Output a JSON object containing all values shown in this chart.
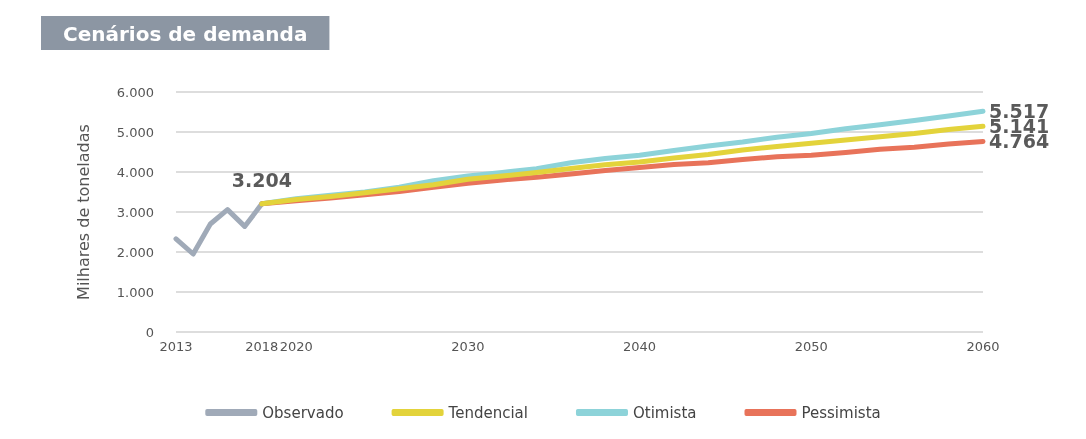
{
  "chart_data": {
    "type": "line",
    "title": "Cenários de demanda",
    "ylabel": "Milhares de toneladas",
    "xlim": [
      2013,
      2060
    ],
    "xticks": [
      2013,
      2018,
      2020,
      2030,
      2040,
      2050,
      2060
    ],
    "ylim": [
      0,
      6000
    ],
    "yticks": [
      {
        "value": 0,
        "label": "0"
      },
      {
        "value": 1000,
        "label": "1.000"
      },
      {
        "value": 2000,
        "label": "2.000"
      },
      {
        "value": 3000,
        "label": "3.000"
      },
      {
        "value": 4000,
        "label": "4.000"
      },
      {
        "value": 5000,
        "label": "5.000"
      },
      {
        "value": 6000,
        "label": "6.000"
      }
    ],
    "grid": "y",
    "legend": "bottom",
    "marker": "none",
    "line_style": "solid",
    "series": [
      {
        "name": "Observado",
        "color": "#a0aab8",
        "x": [
          2013,
          2014,
          2015,
          2016,
          2017,
          2018
        ],
        "values": [
          2330,
          1950,
          2700,
          3060,
          2640,
          3204
        ],
        "value_labels": [
          null,
          null,
          null,
          null,
          null,
          "3.204"
        ]
      },
      {
        "name": "Tendencial",
        "color": "#e3d33b",
        "x": [
          2018,
          2020,
          2022,
          2024,
          2026,
          2028,
          2030,
          2032,
          2034,
          2036,
          2038,
          2040,
          2042,
          2044,
          2046,
          2048,
          2050,
          2052,
          2054,
          2056,
          2058,
          2060
        ],
        "values": [
          3204,
          3310,
          3390,
          3480,
          3580,
          3680,
          3820,
          3900,
          3990,
          4090,
          4180,
          4250,
          4350,
          4440,
          4550,
          4640,
          4720,
          4800,
          4880,
          4960,
          5060,
          5141
        ],
        "value_labels": [
          null,
          null,
          null,
          null,
          null,
          null,
          null,
          null,
          null,
          null,
          null,
          null,
          null,
          null,
          null,
          null,
          null,
          null,
          null,
          null,
          null,
          "5.141"
        ]
      },
      {
        "name": "Otimista",
        "color": "#8dd3d9",
        "x": [
          2018,
          2020,
          2022,
          2024,
          2026,
          2028,
          2030,
          2032,
          2034,
          2036,
          2038,
          2040,
          2042,
          2044,
          2046,
          2048,
          2050,
          2052,
          2054,
          2056,
          2058,
          2060
        ],
        "values": [
          3204,
          3330,
          3420,
          3500,
          3620,
          3780,
          3900,
          3990,
          4080,
          4230,
          4340,
          4420,
          4540,
          4650,
          4750,
          4870,
          4960,
          5080,
          5180,
          5290,
          5400,
          5517
        ],
        "value_labels": [
          null,
          null,
          null,
          null,
          null,
          null,
          null,
          null,
          null,
          null,
          null,
          null,
          null,
          null,
          null,
          null,
          null,
          null,
          null,
          null,
          null,
          "5.517"
        ]
      },
      {
        "name": "Pessimista",
        "color": "#e8735a",
        "x": [
          2018,
          2020,
          2022,
          2024,
          2026,
          2028,
          2030,
          2032,
          2034,
          2036,
          2038,
          2040,
          2042,
          2044,
          2046,
          2048,
          2050,
          2052,
          2054,
          2056,
          2058,
          2060
        ],
        "values": [
          3204,
          3280,
          3350,
          3430,
          3510,
          3620,
          3720,
          3800,
          3870,
          3950,
          4040,
          4110,
          4190,
          4230,
          4310,
          4380,
          4420,
          4490,
          4570,
          4620,
          4700,
          4764
        ],
        "value_labels": [
          null,
          null,
          null,
          null,
          null,
          null,
          null,
          null,
          null,
          null,
          null,
          null,
          null,
          null,
          null,
          null,
          null,
          null,
          null,
          null,
          null,
          "4.764"
        ]
      }
    ]
  }
}
